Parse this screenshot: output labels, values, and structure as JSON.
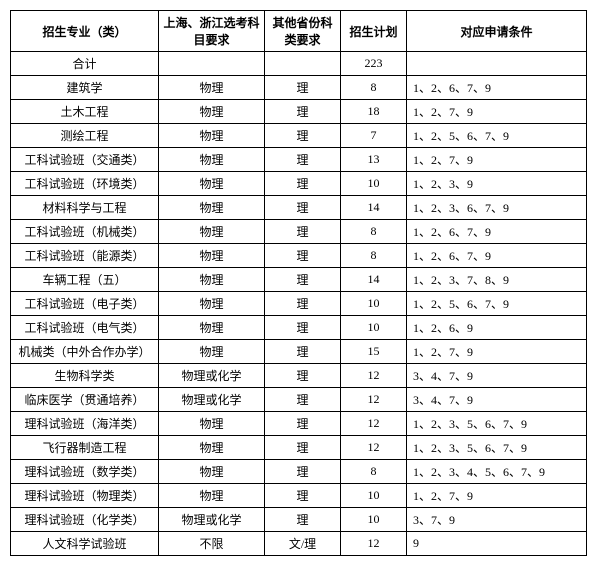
{
  "headers": {
    "major": "招生专业（类）",
    "shanghai_zhejiang": "上海、浙江选考科目要求",
    "other_province": "其他省份科类要求",
    "plan": "招生计划",
    "conditions": "对应申请条件"
  },
  "total_row": {
    "label": "合计",
    "plan": "223"
  },
  "rows": [
    {
      "major": "建筑学",
      "sh": "物理",
      "other": "理",
      "plan": "8",
      "cond": "1、2、6、7、9"
    },
    {
      "major": "土木工程",
      "sh": "物理",
      "other": "理",
      "plan": "18",
      "cond": "1、2、7、9"
    },
    {
      "major": "测绘工程",
      "sh": "物理",
      "other": "理",
      "plan": "7",
      "cond": "1、2、5、6、7、9"
    },
    {
      "major": "工科试验班（交通类）",
      "sh": "物理",
      "other": "理",
      "plan": "13",
      "cond": "1、2、7、9"
    },
    {
      "major": "工科试验班（环境类）",
      "sh": "物理",
      "other": "理",
      "plan": "10",
      "cond": "1、2、3、9"
    },
    {
      "major": "材料科学与工程",
      "sh": "物理",
      "other": "理",
      "plan": "14",
      "cond": "1、2、3、6、7、9"
    },
    {
      "major": "工科试验班（机械类）",
      "sh": "物理",
      "other": "理",
      "plan": "8",
      "cond": "1、2、6、7、9"
    },
    {
      "major": "工科试验班（能源类）",
      "sh": "物理",
      "other": "理",
      "plan": "8",
      "cond": "1、2、6、7、9"
    },
    {
      "major": "车辆工程（五）",
      "sh": "物理",
      "other": "理",
      "plan": "14",
      "cond": "1、2、3、7、8、9"
    },
    {
      "major": "工科试验班（电子类）",
      "sh": "物理",
      "other": "理",
      "plan": "10",
      "cond": "1、2、5、6、7、9"
    },
    {
      "major": "工科试验班（电气类）",
      "sh": "物理",
      "other": "理",
      "plan": "10",
      "cond": "1、2、6、9"
    },
    {
      "major": "机械类（中外合作办学）",
      "sh": "物理",
      "other": "理",
      "plan": "15",
      "cond": "1、2、7、9"
    },
    {
      "major": "生物科学类",
      "sh": "物理或化学",
      "other": "理",
      "plan": "12",
      "cond": "3、4、7、9"
    },
    {
      "major": "临床医学（贯通培养）",
      "sh": "物理或化学",
      "other": "理",
      "plan": "12",
      "cond": "3、4、7、9"
    },
    {
      "major": "理科试验班（海洋类）",
      "sh": "物理",
      "other": "理",
      "plan": "12",
      "cond": "1、2、3、5、6、7、9"
    },
    {
      "major": "飞行器制造工程",
      "sh": "物理",
      "other": "理",
      "plan": "12",
      "cond": "1、2、3、5、6、7、9"
    },
    {
      "major": "理科试验班（数学类）",
      "sh": "物理",
      "other": "理",
      "plan": "8",
      "cond": "1、2、3、4、5、6、7、9"
    },
    {
      "major": "理科试验班（物理类）",
      "sh": "物理",
      "other": "理",
      "plan": "10",
      "cond": "1、2、7、9"
    },
    {
      "major": "理科试验班（化学类）",
      "sh": "物理或化学",
      "other": "理",
      "plan": "10",
      "cond": "3、7、9"
    },
    {
      "major": "人文科学试验班",
      "sh": "不限",
      "other": "文/理",
      "plan": "12",
      "cond": "9"
    }
  ]
}
